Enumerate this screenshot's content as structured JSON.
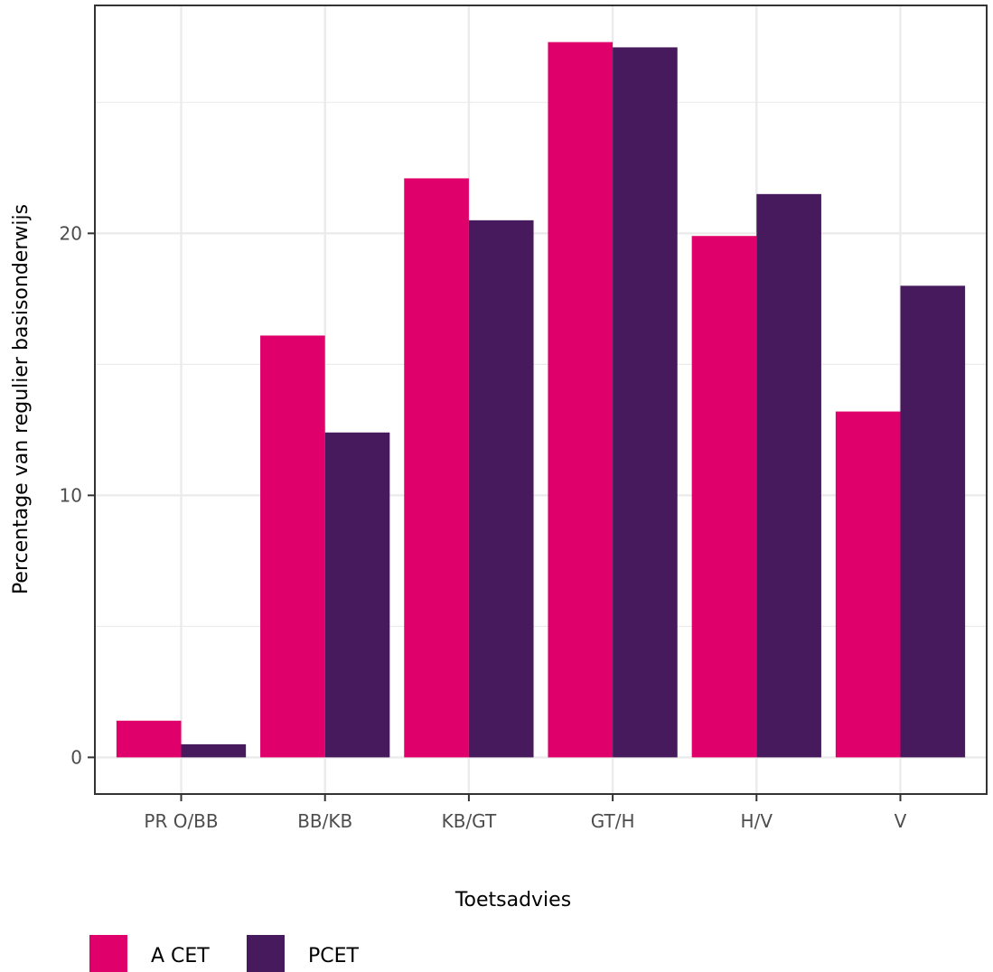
{
  "chart_data": {
    "type": "bar",
    "title": "",
    "xlabel": "Toetsadvies",
    "ylabel": "Percentage van regulier basisonderwijs",
    "categories": [
      "PR O/BB",
      "BB/KB",
      "KB/GT",
      "GT/H",
      "H/V",
      "V"
    ],
    "series": [
      {
        "name": "A CET",
        "color": "#e0006b",
        "values": [
          1.4,
          16.1,
          22.1,
          27.3,
          19.9,
          13.2
        ]
      },
      {
        "name": "PCET",
        "color": "#461a5c",
        "values": [
          0.5,
          12.4,
          20.5,
          27.1,
          21.5,
          18.0
        ]
      }
    ],
    "ylim": [
      -1.4,
      28.7
    ],
    "yticks": [
      0,
      10,
      20
    ],
    "grid": true,
    "legend_position": "bottom-left"
  }
}
